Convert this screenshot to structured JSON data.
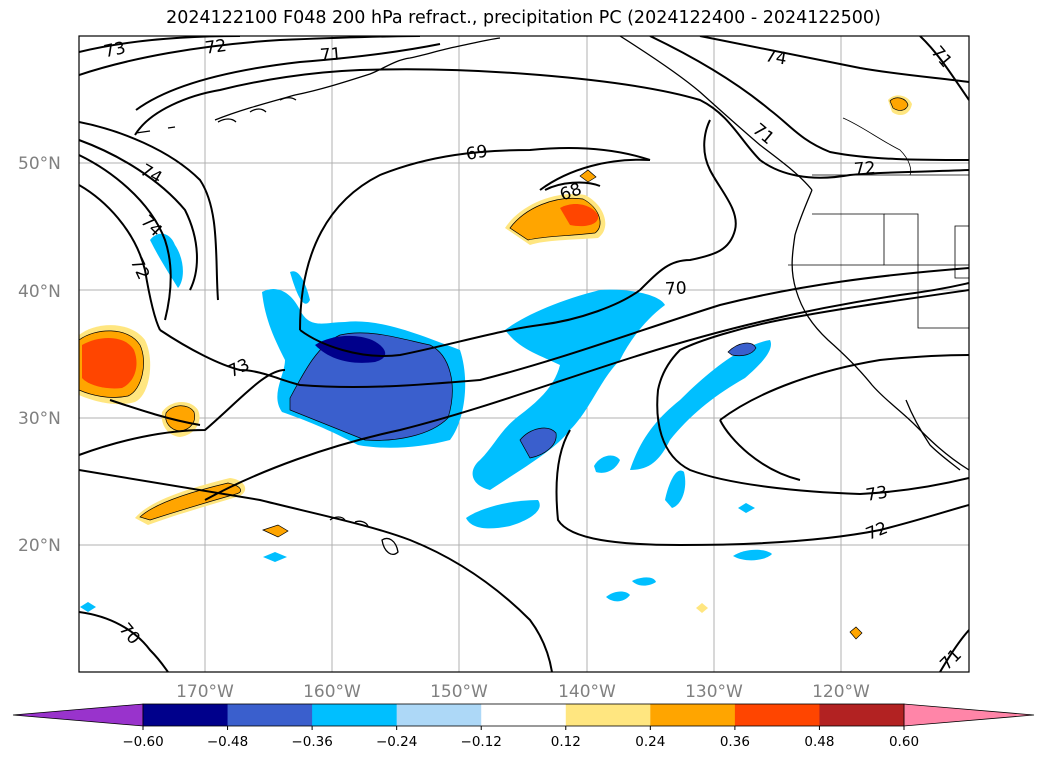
{
  "title": "2024122100 F048 200 hPa refract., precipitation PC (2024122400 - 2024122500)",
  "map": {
    "projection": "cylindrical",
    "lon_range": [
      -180,
      -110
    ],
    "lat_range": [
      10,
      60
    ],
    "lat_ticks": [
      "20°N",
      "30°N",
      "40°N",
      "50°N"
    ],
    "lon_ticks": [
      "170°W",
      "160°W",
      "150°W",
      "140°W",
      "130°W",
      "120°W"
    ],
    "contour_labels": [
      "73",
      "72",
      "71",
      "74",
      "69",
      "68",
      "72",
      "74",
      "71",
      "74",
      "72",
      "73",
      "70",
      "73",
      "72",
      "70",
      "71"
    ]
  },
  "colorbar": {
    "ticks": [
      "−0.60",
      "−0.48",
      "−0.36",
      "−0.24",
      "−0.12",
      "0.12",
      "0.24",
      "0.36",
      "0.48",
      "0.60"
    ],
    "colors": [
      "#9933cc",
      "#00008b",
      "#3a5fcd",
      "#00bfff",
      "#add8f7",
      "#ffffff",
      "#ffe680",
      "#ffa500",
      "#ff4500",
      "#b22222",
      "#ff85a8"
    ],
    "extend": "both"
  }
}
